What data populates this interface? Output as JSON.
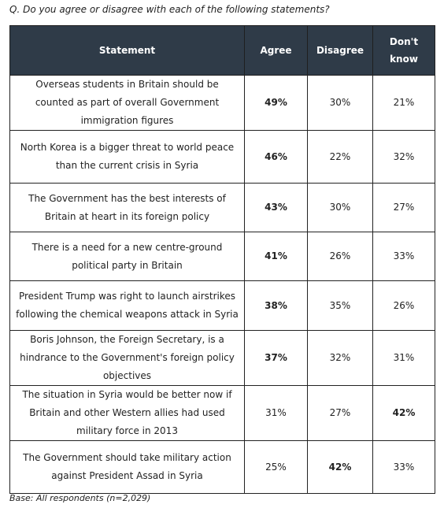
{
  "question": "Q. Do you agree or disagree with each of the following statements?",
  "table": {
    "headers": [
      "Statement",
      "Agree",
      "Disagree",
      "Don't know"
    ],
    "rows": [
      {
        "statement": "Overseas students in Britain should be counted as part of overall Government immigration figures",
        "agree": "49%",
        "disagree": "30%",
        "dont_know": "21%",
        "bold": "agree"
      },
      {
        "statement": "North Korea is a bigger threat to world peace than the current crisis in Syria",
        "agree": "46%",
        "disagree": "22%",
        "dont_know": "32%",
        "bold": "agree"
      },
      {
        "statement": "The Government has the best interests of Britain at heart in its foreign policy",
        "agree": "43%",
        "disagree": "30%",
        "dont_know": "27%",
        "bold": "agree"
      },
      {
        "statement": "There is a need for a new centre-ground political party in Britain",
        "agree": "41%",
        "disagree": "26%",
        "dont_know": "33%",
        "bold": "agree"
      },
      {
        "statement": "President Trump was right to launch airstrikes following the chemical weapons attack in Syria",
        "agree": "38%",
        "disagree": "35%",
        "dont_know": "26%",
        "bold": "agree"
      },
      {
        "statement": "Boris Johnson, the Foreign Secretary, is a hindrance to the Government's foreign policy objectives",
        "agree": "37%",
        "disagree": "32%",
        "dont_know": "31%",
        "bold": "agree"
      },
      {
        "statement": "The situation in Syria would be better now if Britain and other Western allies had used military force in 2013",
        "agree": "31%",
        "disagree": "27%",
        "dont_know": "42%",
        "bold": "dont_know"
      },
      {
        "statement": "The Government should take military action against President Assad in Syria",
        "agree": "25%",
        "disagree": "42%",
        "dont_know": "33%",
        "bold": "disagree"
      }
    ]
  },
  "base": "Base: All respondents (n=2,029)",
  "colors": {
    "header_bg": "#2f3b48",
    "header_text": "#ffffff",
    "border": "#222222"
  }
}
